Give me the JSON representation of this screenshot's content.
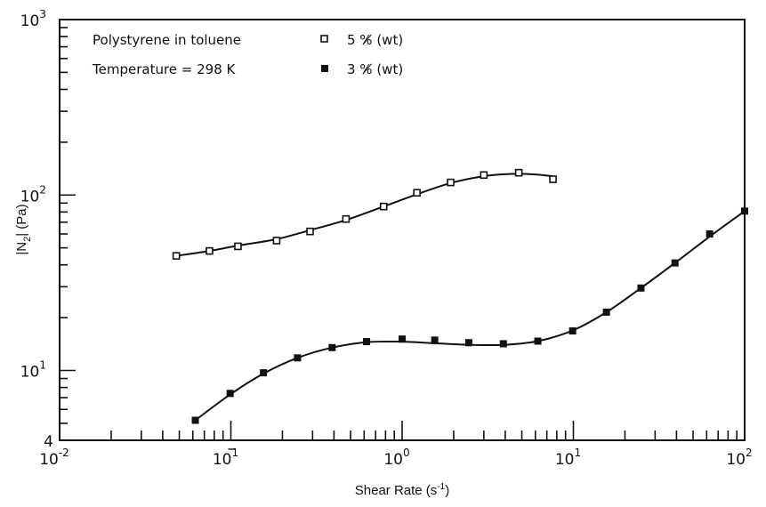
{
  "chart_data": {
    "type": "scatter",
    "xlabel": "Shear Rate (s",
    "xlabel_sup": "-1",
    "xlabel_end": ")",
    "ylabel_pre": "|N",
    "ylabel_sub": "2",
    "ylabel_post": "| (Pa)",
    "x_scale": "log",
    "y_scale": "log",
    "xlim": [
      0.01,
      100
    ],
    "ylim": [
      4,
      1000
    ],
    "x_ticks": [
      {
        "value": 0.01,
        "base": "10",
        "exp": "-2",
        "over": false
      },
      {
        "value": 0.1,
        "base": "10",
        "exp": "1",
        "over": true
      },
      {
        "value": 1,
        "base": "10",
        "exp": "0",
        "over": false
      },
      {
        "value": 10,
        "base": "10",
        "exp": "1",
        "over": false
      },
      {
        "value": 100,
        "base": "10",
        "exp": "2",
        "over": false
      }
    ],
    "y_ticks": [
      {
        "value": 4,
        "base": "4",
        "exp": ""
      },
      {
        "value": 10,
        "base": "10",
        "exp": "1"
      },
      {
        "value": 100,
        "base": "10",
        "exp": "2"
      },
      {
        "value": 1000,
        "base": "10",
        "exp": "3"
      }
    ],
    "annotations": [
      "Polystyrene in toluene",
      "Temperature = 298 K"
    ],
    "legend_position": "top",
    "series": [
      {
        "name": "5 %̸ (wt)",
        "marker": "open-square",
        "x": [
          0.048,
          0.075,
          0.11,
          0.185,
          0.29,
          0.47,
          0.78,
          1.22,
          1.92,
          3.0,
          4.8,
          7.6
        ],
        "y": [
          45,
          48,
          51,
          55,
          62,
          73,
          86,
          103,
          118,
          130,
          134,
          123
        ]
      },
      {
        "name": "3 %̸ (wt)",
        "marker": "filled-square",
        "x": [
          0.062,
          0.099,
          0.155,
          0.245,
          0.39,
          0.62,
          1.0,
          1.55,
          2.45,
          3.9,
          6.2,
          9.9,
          15.6,
          24.8,
          39.2,
          62.5,
          100
        ],
        "y": [
          5.2,
          7.4,
          9.7,
          11.8,
          13.5,
          14.6,
          15.1,
          14.9,
          14.4,
          14.2,
          14.7,
          16.8,
          21.5,
          29.5,
          41,
          60,
          81
        ]
      }
    ],
    "curves": [
      {
        "x": [
          0.048,
          0.075,
          0.11,
          0.185,
          0.29,
          0.47,
          0.78,
          1.22,
          1.92,
          3.0,
          4.4,
          6.0,
          7.6
        ],
        "y": [
          45,
          48,
          51.5,
          56,
          63,
          72,
          86,
          101,
          117,
          128,
          132,
          131,
          128
        ]
      },
      {
        "x": [
          0.062,
          0.099,
          0.155,
          0.245,
          0.39,
          0.62,
          1.0,
          1.55,
          2.45,
          3.9,
          6.2,
          9.9,
          15.6,
          24.8,
          39.2,
          62.5,
          100
        ],
        "y": [
          5.2,
          7.3,
          9.6,
          11.8,
          13.5,
          14.5,
          14.6,
          14.3,
          14.0,
          14.0,
          14.7,
          16.9,
          21.5,
          29.5,
          41,
          58,
          81
        ]
      }
    ]
  }
}
